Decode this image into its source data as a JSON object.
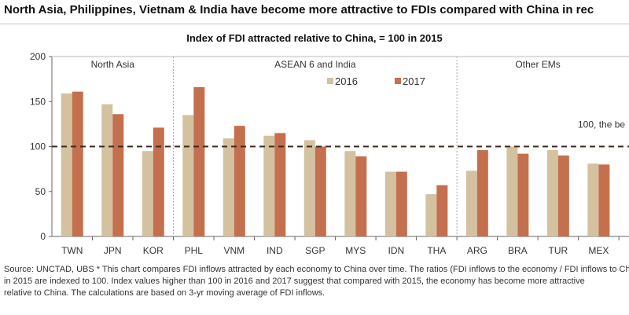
{
  "headline": "North Asia, Philippines, Vietnam & India have become more attractive to FDIs compared with China in rec",
  "footnote": {
    "line1": "Source: UNCTAD, UBS    * This chart compares FDI inflows attracted by each economy to China over time. The ratios (FDI inflows to the economy / FDI inflows to China)",
    "line2": "in 2015 are indexed to 100. Index values higher than 100 in 2016 and 2017 suggest that compared with 2015, the economy has become more attractive",
    "line3": "relative to China. The calculations are based on 3-yr moving average of FDI inflows."
  },
  "chart_data": {
    "type": "bar",
    "title": "Index of FDI attracted relative to China, = 100 in 2015",
    "categories": [
      "TWN",
      "JPN",
      "KOR",
      "PHL",
      "VNM",
      "IND",
      "SGP",
      "MYS",
      "IDN",
      "THA",
      "ARG",
      "BRA",
      "TUR",
      "MEX"
    ],
    "series": [
      {
        "name": "2016",
        "color": "#d4c1a0",
        "values": [
          159,
          147,
          95,
          135,
          109,
          112,
          107,
          95,
          72,
          47,
          73,
          100,
          96,
          81
        ]
      },
      {
        "name": "2017",
        "color": "#c4704f",
        "values": [
          161,
          136,
          121,
          166,
          123,
          115,
          100,
          89,
          72,
          57,
          96,
          92,
          90,
          80
        ]
      }
    ],
    "groups": [
      {
        "label": "North Asia",
        "start": 0,
        "end": 2
      },
      {
        "label": "ASEAN 6 and India",
        "start": 3,
        "end": 9
      },
      {
        "label": "Other EMs",
        "start": 10,
        "end": 13
      }
    ],
    "reference_line": {
      "value": 100,
      "label": "100, the be"
    },
    "yticks": [
      0,
      50,
      100,
      150,
      200
    ],
    "ylim": [
      0,
      200
    ],
    "xlabel": "",
    "ylabel": ""
  }
}
